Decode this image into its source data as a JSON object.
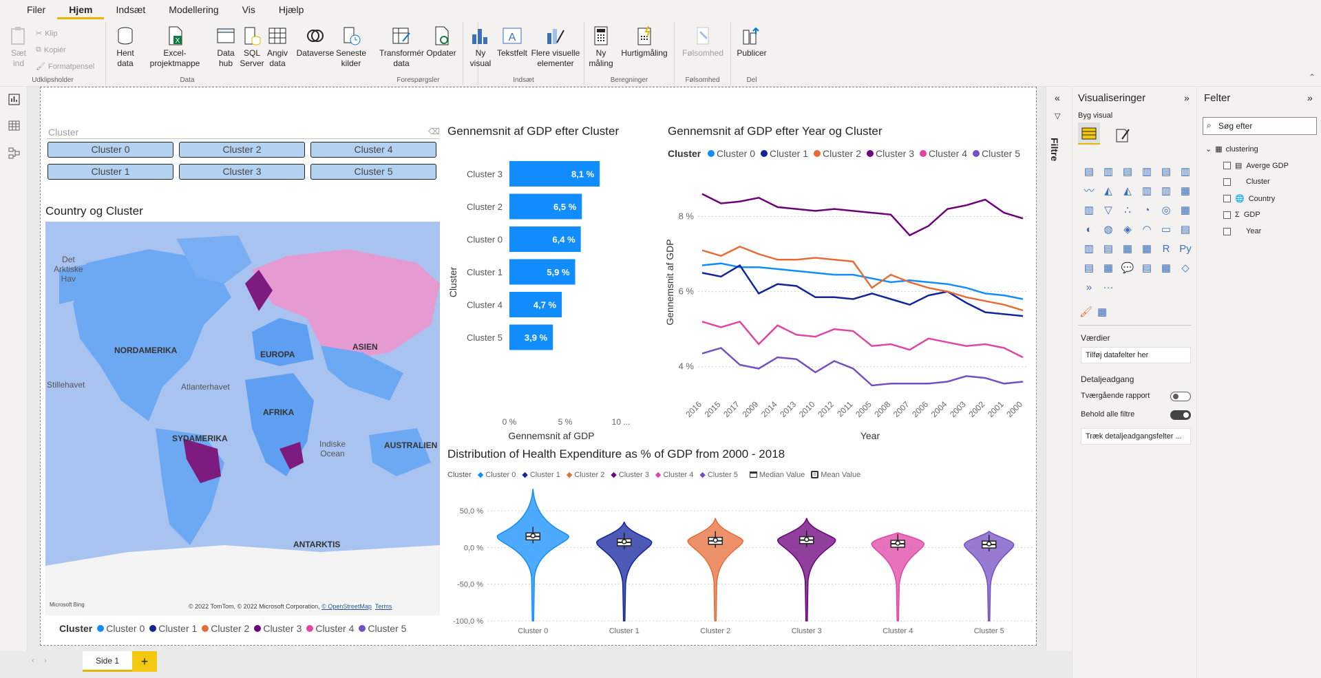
{
  "menu": {
    "items": [
      "Filer",
      "Hjem",
      "Indsæt",
      "Modellering",
      "Vis",
      "Hjælp"
    ],
    "active": "Hjem"
  },
  "ribbon": {
    "clipboard": {
      "paste": "Sæt\nind",
      "cut": "Klip",
      "copy": "Kopiér",
      "format_painter": "Formatpensel",
      "group_label": "Udklipsholder"
    },
    "data": {
      "get_data": "Hent\ndata",
      "excel": "Excel-projektmappe",
      "datahub": "Data\nhub",
      "sql": "SQL\nServer",
      "enter": "Angiv\ndata",
      "dataverse": "Dataverse",
      "recent": "Seneste\nkilder",
      "group_label": "Data"
    },
    "queries": {
      "transform": "Transformér\ndata",
      "refresh": "Opdater",
      "group_label": "Forespørgsler"
    },
    "insert": {
      "new_visual": "Ny\nvisual",
      "textbox": "Tekstfelt",
      "more_visuals": "Flere visuelle\nelementer",
      "group_label": "Indsæt"
    },
    "calc": {
      "new_measure": "Ny\nmåling",
      "quick_measure": "Hurtigmåling",
      "group_label": "Beregninger"
    },
    "sensitivity": {
      "label": "Følsomhed",
      "group_label": "Følsomhed"
    },
    "share": {
      "publish": "Publicer",
      "group_label": "Del"
    }
  },
  "colors": {
    "c0": "#118dff",
    "c1": "#12239e",
    "c2": "#e66c37",
    "c3": "#6b007b",
    "c4": "#e044a7",
    "c5": "#744ec2",
    "accent": "#f2c811"
  },
  "slicer": {
    "title": "Cluster",
    "buttons": [
      "Cluster 0",
      "Cluster 2",
      "Cluster 4",
      "Cluster 1",
      "Cluster 3",
      "Cluster 5"
    ]
  },
  "map": {
    "title": "Country og Cluster",
    "labels": {
      "arctic": "Det\nArktiske\nHav",
      "na": "NORDAMERIKA",
      "eu": "EUROPA",
      "asia": "ASIEN",
      "pacific": "Stillehavet",
      "atlantic": "Atlanterhavet",
      "africa": "AFRIKA",
      "sa": "SYDAMERIKA",
      "indian": "Indiske\nOcean",
      "australia": "AUSTRALIEN",
      "antarctica": "ANTARKTIS"
    },
    "attribution": "© 2022 TomTom, © 2022 Microsoft Corporation,",
    "osm": "© OpenStreetMap",
    "terms": "Terms",
    "bing": "Microsoft Bing",
    "legend_title": "Cluster",
    "legend": [
      "Cluster 0",
      "Cluster 1",
      "Cluster 2",
      "Cluster 3",
      "Cluster 4",
      "Cluster 5"
    ]
  },
  "chart_data": [
    {
      "type": "bar",
      "title": "Gennemsnit af GDP efter Cluster",
      "xlabel": "Gennemsnit af GDP",
      "ylabel": "Cluster",
      "categories": [
        "Cluster 3",
        "Cluster 2",
        "Cluster 0",
        "Cluster 1",
        "Cluster 4",
        "Cluster 5"
      ],
      "values": [
        8.1,
        6.5,
        6.4,
        5.9,
        4.7,
        3.9
      ],
      "data_labels": [
        "8,1 %",
        "6,5 %",
        "6,4 %",
        "5,9 %",
        "4,7 %",
        "3,9 %"
      ],
      "xticks": [
        "0 %",
        "5 %",
        "10 ..."
      ],
      "xlim": [
        0,
        10
      ]
    },
    {
      "type": "line",
      "title": "Gennemsnit af GDP efter Year og Cluster",
      "xlabel": "Year",
      "ylabel": "Gennemsnit af GDP",
      "legend_title": "Cluster",
      "x": [
        "2016",
        "2015",
        "2017",
        "2009",
        "2014",
        "2013",
        "2010",
        "2012",
        "2011",
        "2005",
        "2008",
        "2007",
        "2006",
        "2004",
        "2003",
        "2002",
        "2001",
        "2000"
      ],
      "yticks": [
        "8 %",
        "6 %",
        "4 %"
      ],
      "ylim": [
        3.5,
        9.0
      ],
      "series": [
        {
          "name": "Cluster 0",
          "values": [
            6.7,
            6.75,
            6.65,
            6.65,
            6.6,
            6.55,
            6.5,
            6.45,
            6.45,
            6.35,
            6.25,
            6.3,
            6.25,
            6.2,
            6.1,
            5.95,
            5.9,
            5.8
          ]
        },
        {
          "name": "Cluster 1",
          "values": [
            6.5,
            6.4,
            6.7,
            5.95,
            6.2,
            6.15,
            5.85,
            5.85,
            5.8,
            5.95,
            5.8,
            5.65,
            5.9,
            6.0,
            5.7,
            5.45,
            5.4,
            5.35
          ]
        },
        {
          "name": "Cluster 2",
          "values": [
            7.1,
            6.95,
            7.2,
            7.0,
            6.85,
            6.85,
            6.9,
            6.85,
            6.8,
            6.1,
            6.45,
            6.25,
            6.1,
            6.0,
            5.85,
            5.75,
            5.65,
            5.5
          ]
        },
        {
          "name": "Cluster 3",
          "values": [
            8.6,
            8.35,
            8.4,
            8.5,
            8.25,
            8.2,
            8.15,
            8.2,
            8.15,
            8.1,
            8.05,
            7.5,
            7.75,
            8.2,
            8.3,
            8.45,
            8.1,
            7.95
          ]
        },
        {
          "name": "Cluster 4",
          "values": [
            5.2,
            5.05,
            5.2,
            4.6,
            5.1,
            4.85,
            4.8,
            5.0,
            4.95,
            4.55,
            4.6,
            4.45,
            4.75,
            4.65,
            4.55,
            4.6,
            4.5,
            4.25
          ]
        },
        {
          "name": "Cluster 5",
          "values": [
            4.35,
            4.5,
            4.05,
            3.95,
            4.25,
            4.2,
            3.85,
            4.15,
            3.95,
            3.5,
            3.55,
            3.55,
            3.55,
            3.6,
            3.75,
            3.7,
            3.55,
            3.6
          ]
        }
      ]
    },
    {
      "type": "violin",
      "title": "Distribution of Health Expenditure as % of GDP from 2000 - 2018",
      "legend_title": "Cluster",
      "legend": [
        "Cluster 0",
        "Cluster 1",
        "Cluster 2",
        "Cluster 3",
        "Cluster 4",
        "Cluster 5"
      ],
      "legend_extra": [
        "Median Value",
        "Mean Value"
      ],
      "categories": [
        "Cluster 0",
        "Cluster 1",
        "Cluster 2",
        "Cluster 3",
        "Cluster 4",
        "Cluster 5"
      ],
      "yticks": [
        "50,0 %",
        "0,0 %",
        "-50,0 %",
        "-100,0 %"
      ],
      "ylim": [
        -100,
        80
      ],
      "median": [
        15,
        7,
        9,
        10,
        5,
        4
      ],
      "max": [
        80,
        35,
        40,
        40,
        20,
        22
      ],
      "min": [
        -100,
        -100,
        -100,
        -100,
        -100,
        -100
      ]
    }
  ],
  "visualizations": {
    "title": "Visualiseringer",
    "build": "Byg visual",
    "values": "Værdier",
    "values_placeholder": "Tilføj datafelter her",
    "drill": "Detaljeadgang",
    "cross_report": "Tværgående rapport",
    "keep_filters": "Behold alle filtre",
    "drill_placeholder": "Træk detaljeadgangsfelter ..."
  },
  "filters": {
    "label": "Filtre"
  },
  "fields": {
    "title": "Felter",
    "search_placeholder": "Søg efter",
    "table": "clustering",
    "items": [
      "Averge GDP",
      "Cluster",
      "Country",
      "GDP",
      "Year"
    ]
  },
  "pages": {
    "tab": "Side 1",
    "add": "+"
  }
}
